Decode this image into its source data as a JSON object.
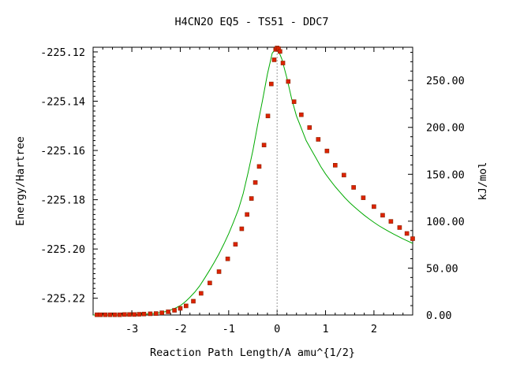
{
  "chart_data": {
    "type": "line",
    "title": "H4CN2O   EQ5 - TS51 - DDC7",
    "xlabel": "Reaction Path Length/A amu^{1/2}",
    "ylabel": "Energy/Hartree",
    "y2label": "kJ/mol",
    "xlim": [
      -3.8,
      2.8
    ],
    "ylim": [
      -225.2268,
      -225.1181
    ],
    "y2lim": [
      0,
      285.4
    ],
    "x_ticks": [
      -3,
      -2,
      -1,
      0,
      1,
      2
    ],
    "x_tick_labels": [
      "-3",
      "-2",
      "-1",
      "0",
      "1",
      "2"
    ],
    "y_ticks": [
      -225.12,
      -225.14,
      -225.16,
      -225.18,
      -225.2,
      -225.22
    ],
    "y_tick_labels": [
      "-225.12",
      "-225.14",
      "-225.16",
      "-225.18",
      "-225.20",
      "-225.22"
    ],
    "y2_ticks": [
      0,
      50,
      100,
      150,
      200,
      250
    ],
    "y2_tick_labels": [
      "0.00",
      "50.00",
      "100.00",
      "150.00",
      "200.00",
      "250.00"
    ],
    "ts_marker_x": 0.0,
    "colors": {
      "curve": "#00aa00",
      "points": "#dd2200",
      "point_edge": "#882200",
      "ts_line": "#999999"
    },
    "series": [
      {
        "x": [
          -3.8,
          -3.7,
          -3.6,
          -3.5,
          -3.4,
          -3.3,
          -3.2,
          -3.1,
          -3.0,
          -2.9,
          -2.8,
          -2.7,
          -2.6,
          -2.5,
          -2.4,
          -2.3,
          -2.2,
          -2.1,
          -2.0,
          -1.9,
          -1.8,
          -1.7,
          -1.6,
          -1.5,
          -1.4,
          -1.3,
          -1.2,
          -1.1,
          -1.0,
          -0.9,
          -0.8,
          -0.7,
          -0.6,
          -0.5,
          -0.4,
          -0.3,
          -0.2,
          -0.1,
          0.0,
          0.1,
          0.2,
          0.3,
          0.4,
          0.5,
          0.6,
          0.7,
          0.8,
          0.9,
          1.0,
          1.1,
          1.2,
          1.3,
          1.4,
          1.5,
          1.6,
          1.7,
          1.8,
          1.9,
          2.0,
          2.1,
          2.2,
          2.3,
          2.4,
          2.5,
          2.6,
          2.7,
          2.8
        ],
        "values": [
          -225.2268,
          -225.2268,
          -225.2268,
          -225.2268,
          -225.2268,
          -225.2268,
          -225.2267,
          -225.2267,
          -225.2266,
          -225.2266,
          -225.2265,
          -225.2264,
          -225.2263,
          -225.2261,
          -225.2258,
          -225.2254,
          -225.2248,
          -225.224,
          -225.223,
          -225.2215,
          -225.2196,
          -225.2175,
          -225.215,
          -225.212,
          -225.2088,
          -225.2055,
          -225.202,
          -225.198,
          -225.1938,
          -225.189,
          -225.184,
          -225.1775,
          -225.169,
          -225.16,
          -225.1495,
          -225.1395,
          -225.129,
          -225.1205,
          -225.1181,
          -225.123,
          -225.1305,
          -225.139,
          -225.146,
          -225.151,
          -225.156,
          -225.1595,
          -225.163,
          -225.1665,
          -225.1695,
          -225.1722,
          -225.1747,
          -225.177,
          -225.1792,
          -225.1812,
          -225.183,
          -225.1847,
          -225.1863,
          -225.1878,
          -225.1892,
          -225.1905,
          -225.1917,
          -225.1928,
          -225.1939,
          -225.1949,
          -225.1959,
          -225.1968,
          -225.1977
        ]
      },
      {
        "x": [
          -3.72,
          -3.65,
          -3.55,
          -3.45,
          -3.35,
          -3.25,
          -3.15,
          -3.05,
          -2.95,
          -2.85,
          -2.75,
          -2.62,
          -2.5,
          -2.38,
          -2.25,
          -2.12,
          -2.0,
          -1.88,
          -1.73,
          -1.57,
          -1.39,
          -1.2,
          -1.02,
          -0.86,
          -0.73,
          -0.62,
          -0.53,
          -0.45,
          -0.37,
          -0.27,
          -0.19,
          -0.12,
          -0.06,
          -0.03,
          0.0,
          0.03,
          0.06,
          0.12,
          0.23,
          0.35,
          0.5,
          0.67,
          0.85,
          1.03,
          1.2,
          1.38,
          1.58,
          1.78,
          2.0,
          2.18,
          2.35,
          2.53,
          2.68,
          2.8
        ],
        "values": [
          -225.2267,
          -225.2267,
          -225.2267,
          -225.2267,
          -225.2267,
          -225.2267,
          -225.2266,
          -225.2266,
          -225.2266,
          -225.2265,
          -225.2264,
          -225.2263,
          -225.2262,
          -225.2259,
          -225.2255,
          -225.2249,
          -225.2241,
          -225.2231,
          -225.2212,
          -225.218,
          -225.2138,
          -225.2092,
          -225.204,
          -225.1981,
          -225.1918,
          -225.186,
          -225.1795,
          -225.173,
          -225.1665,
          -225.1578,
          -225.146,
          -225.133,
          -225.1232,
          -225.119,
          -225.1184,
          -225.1187,
          -225.1198,
          -225.1245,
          -225.132,
          -225.1402,
          -225.1455,
          -225.1507,
          -225.1555,
          -225.1602,
          -225.166,
          -225.17,
          -225.175,
          -225.1792,
          -225.1828,
          -225.1863,
          -225.1888,
          -225.1913,
          -225.1937,
          -225.1958
        ]
      }
    ]
  }
}
